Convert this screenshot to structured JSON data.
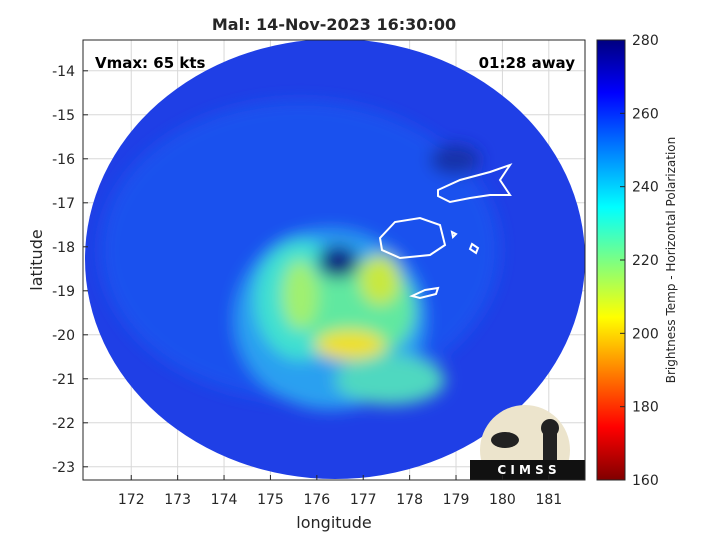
{
  "chart_data": {
    "type": "image",
    "title": "Mal: 14-Nov-2023 16:30:00",
    "xlabel": "longitude",
    "ylabel": "latitude",
    "xlim": [
      170.96,
      181.78
    ],
    "ylim": [
      -23.3,
      -13.3
    ],
    "xticks": [
      172,
      173,
      174,
      175,
      176,
      177,
      178,
      179,
      180,
      181
    ],
    "yticks": [
      -14,
      -15,
      -16,
      -17,
      -18,
      -19,
      -20,
      -21,
      -22,
      -23
    ],
    "grid": true,
    "annotations": [
      "Vmax: 65 kts",
      "01:28 away"
    ],
    "logo": "C I M S S",
    "colorbar": {
      "label": "Brightness Temp - Horizontal Polarization",
      "lim": [
        160,
        280
      ],
      "ticks": [
        160,
        180,
        200,
        220,
        240,
        260,
        280
      ]
    }
  }
}
